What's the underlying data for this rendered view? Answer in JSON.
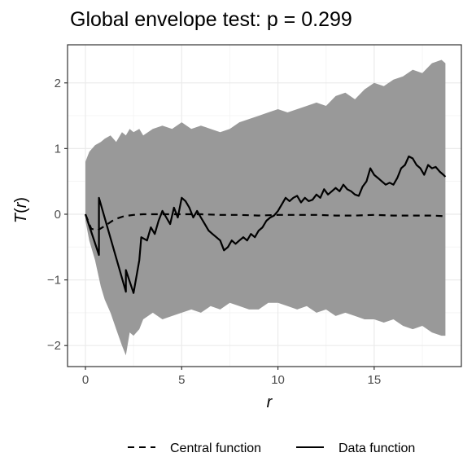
{
  "chart_data": {
    "type": "area",
    "title": "Global envelope test: p = 0.299",
    "xlabel": "r",
    "ylabel_parts": {
      "T": "T",
      "open": "(",
      "r": "r",
      "close": ")"
    },
    "xlim": [
      -0.93,
      19.53
    ],
    "ylim": [
      -2.32,
      2.58
    ],
    "x_ticks": [
      0,
      5,
      10,
      15
    ],
    "x_tick_labels": [
      "0",
      "5",
      "10",
      "15"
    ],
    "y_ticks": [
      -2,
      -1,
      0,
      1,
      2
    ],
    "y_tick_labels": [
      "−2",
      "−1",
      "0",
      "1",
      "2"
    ],
    "grid": true,
    "legend_position": "bottom",
    "colors": {
      "envelope": "#999999",
      "grid_major": "#ebebeb",
      "grid_minor": "#f5f5f5",
      "panel_border": "#333333",
      "line": "#000000"
    },
    "envelope": {
      "x": [
        0,
        0.2,
        0.5,
        0.8,
        1.0,
        1.3,
        1.6,
        1.9,
        2.1,
        2.3,
        2.5,
        2.8,
        3.0,
        3.5,
        4.0,
        4.5,
        5.0,
        5.5,
        6.0,
        6.5,
        7.0,
        7.5,
        8.0,
        8.5,
        9.0,
        9.5,
        10.0,
        10.5,
        11.0,
        11.5,
        12.0,
        12.5,
        13.0,
        13.5,
        14.0,
        14.5,
        15.0,
        15.5,
        16.0,
        16.5,
        17.0,
        17.5,
        18.0,
        18.5,
        18.7
      ],
      "upper": [
        0.8,
        0.95,
        1.05,
        1.1,
        1.15,
        1.2,
        1.1,
        1.25,
        1.2,
        1.3,
        1.25,
        1.3,
        1.2,
        1.3,
        1.35,
        1.3,
        1.4,
        1.3,
        1.35,
        1.3,
        1.25,
        1.3,
        1.4,
        1.45,
        1.5,
        1.55,
        1.6,
        1.55,
        1.6,
        1.65,
        1.7,
        1.65,
        1.8,
        1.85,
        1.75,
        1.9,
        2.0,
        1.95,
        2.05,
        2.1,
        2.2,
        2.15,
        2.3,
        2.35,
        2.3
      ],
      "lower": [
        -0.1,
        -0.4,
        -0.7,
        -1.1,
        -1.3,
        -1.5,
        -1.75,
        -2.0,
        -2.15,
        -1.8,
        -1.85,
        -1.75,
        -1.6,
        -1.5,
        -1.6,
        -1.55,
        -1.5,
        -1.45,
        -1.5,
        -1.4,
        -1.45,
        -1.35,
        -1.4,
        -1.45,
        -1.45,
        -1.35,
        -1.35,
        -1.4,
        -1.45,
        -1.4,
        -1.5,
        -1.45,
        -1.55,
        -1.5,
        -1.55,
        -1.6,
        -1.6,
        -1.65,
        -1.6,
        -1.7,
        -1.75,
        -1.7,
        -1.8,
        -1.85,
        -1.85
      ]
    },
    "series": [
      {
        "name": "Central function",
        "style": "dashed",
        "x": [
          0,
          0.3,
          0.6,
          1.0,
          1.5,
          2.0,
          2.5,
          3.0,
          4.0,
          5.0,
          6.0,
          7.0,
          8.0,
          9.0,
          10.0,
          11.0,
          12.0,
          13.0,
          14.0,
          15.0,
          16.0,
          17.0,
          18.0,
          18.7
        ],
        "values": [
          0,
          -0.22,
          -0.25,
          -0.18,
          -0.08,
          -0.03,
          -0.01,
          0,
          0,
          0,
          0,
          -0.01,
          -0.01,
          -0.02,
          -0.01,
          -0.01,
          -0.01,
          -0.02,
          -0.02,
          -0.01,
          -0.02,
          -0.02,
          -0.02,
          -0.03
        ]
      },
      {
        "name": "Data function",
        "style": "solid",
        "x": [
          0,
          0.7,
          0.7,
          2.1,
          2.1,
          2.5,
          2.8,
          2.9,
          3.2,
          3.4,
          3.6,
          3.8,
          4.0,
          4.2,
          4.4,
          4.6,
          4.8,
          5.0,
          5.2,
          5.4,
          5.6,
          5.8,
          6.0,
          6.2,
          6.4,
          6.6,
          6.8,
          7.0,
          7.2,
          7.4,
          7.6,
          7.8,
          8.0,
          8.2,
          8.4,
          8.6,
          8.8,
          9.0,
          9.2,
          9.4,
          9.6,
          9.8,
          10.0,
          10.2,
          10.4,
          10.6,
          10.8,
          11.0,
          11.2,
          11.4,
          11.6,
          11.8,
          12.0,
          12.2,
          12.4,
          12.6,
          12.8,
          13.0,
          13.2,
          13.4,
          13.6,
          13.8,
          14.0,
          14.2,
          14.4,
          14.6,
          14.8,
          15.0,
          15.2,
          15.4,
          15.6,
          15.8,
          16.0,
          16.2,
          16.4,
          16.6,
          16.8,
          17.0,
          17.2,
          17.4,
          17.6,
          17.8,
          18.0,
          18.2,
          18.4,
          18.6,
          18.7
        ],
        "values": [
          0,
          -0.62,
          0.25,
          -1.18,
          -0.85,
          -1.2,
          -0.7,
          -0.35,
          -0.4,
          -0.2,
          -0.3,
          -0.1,
          0.05,
          -0.05,
          -0.15,
          0.1,
          -0.05,
          0.25,
          0.2,
          0.1,
          -0.05,
          0.05,
          -0.05,
          -0.15,
          -0.25,
          -0.3,
          -0.35,
          -0.4,
          -0.55,
          -0.5,
          -0.4,
          -0.45,
          -0.4,
          -0.35,
          -0.4,
          -0.3,
          -0.35,
          -0.25,
          -0.2,
          -0.1,
          -0.05,
          -0.02,
          0.05,
          0.15,
          0.25,
          0.2,
          0.25,
          0.28,
          0.18,
          0.25,
          0.2,
          0.22,
          0.3,
          0.25,
          0.38,
          0.3,
          0.35,
          0.4,
          0.35,
          0.45,
          0.38,
          0.35,
          0.3,
          0.28,
          0.42,
          0.5,
          0.7,
          0.6,
          0.55,
          0.5,
          0.45,
          0.48,
          0.45,
          0.55,
          0.7,
          0.75,
          0.88,
          0.85,
          0.75,
          0.7,
          0.6,
          0.75,
          0.7,
          0.72,
          0.65,
          0.6,
          0.57
        ]
      }
    ]
  }
}
